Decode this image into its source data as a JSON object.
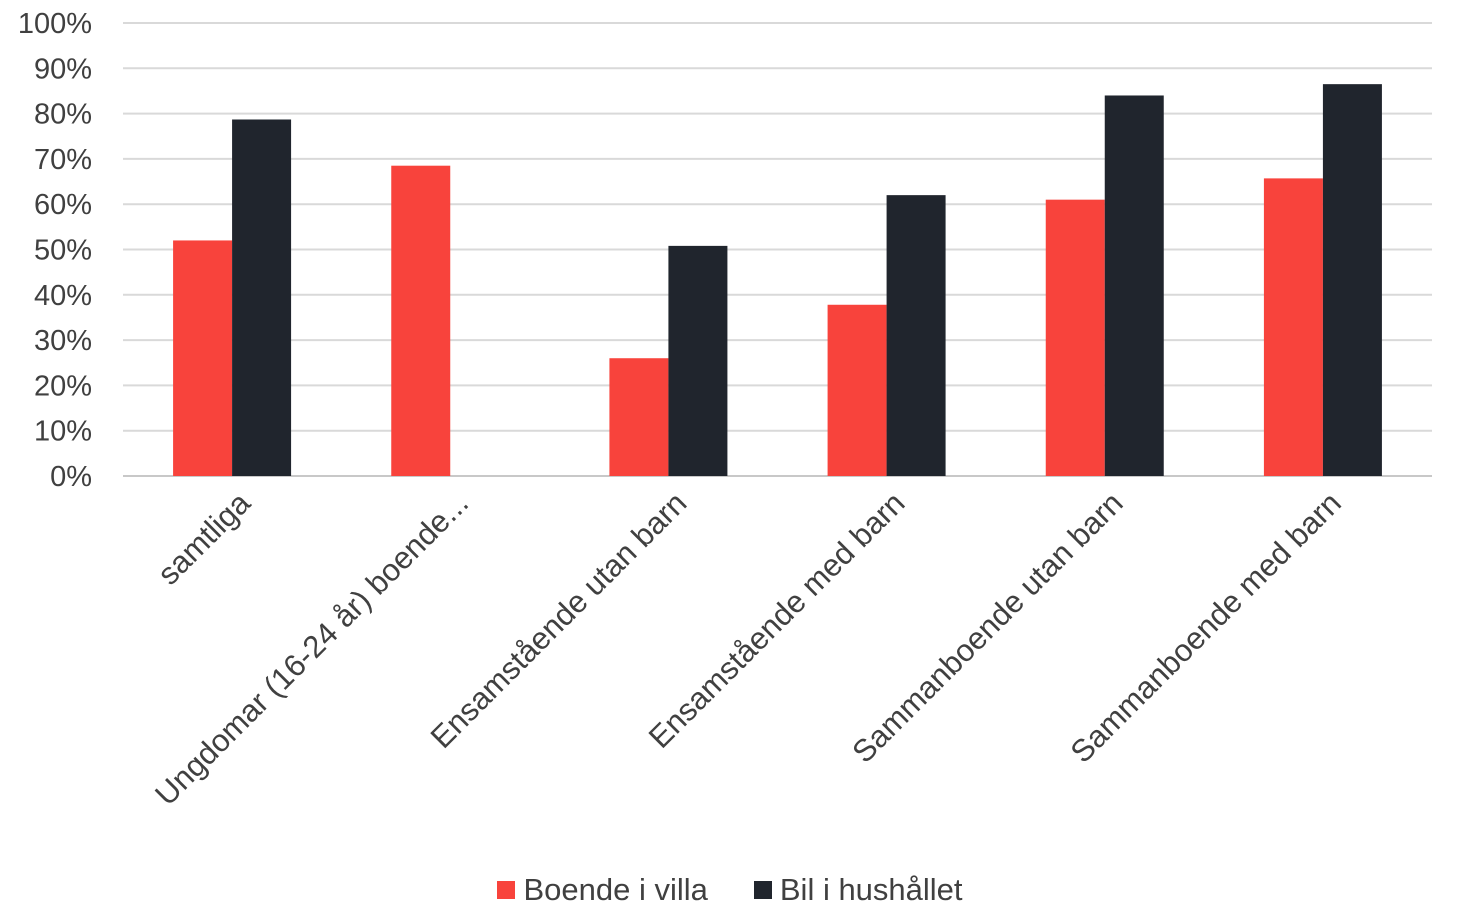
{
  "chart_data": {
    "type": "bar",
    "categories": [
      "samtliga",
      "Ungdomar (16-24 år) boende...",
      "Ensamstående utan barn",
      "Ensamstående med barn",
      "Sammanboende utan barn",
      "Sammanboende med barn"
    ],
    "series": [
      {
        "name": "Boende i villa",
        "color": "#f8433c",
        "values": [
          52,
          68.5,
          26,
          37.8,
          61,
          65.7
        ]
      },
      {
        "name": "Bil i hushållet",
        "color": "#20252d",
        "values": [
          78.7,
          null,
          50.8,
          62,
          84,
          86.5
        ]
      }
    ],
    "ylim": [
      0,
      100
    ],
    "yticks": [
      "0%",
      "10%",
      "20%",
      "30%",
      "40%",
      "50%",
      "60%",
      "70%",
      "80%",
      "90%",
      "100%"
    ],
    "grid": true,
    "legend_position": "bottom"
  }
}
